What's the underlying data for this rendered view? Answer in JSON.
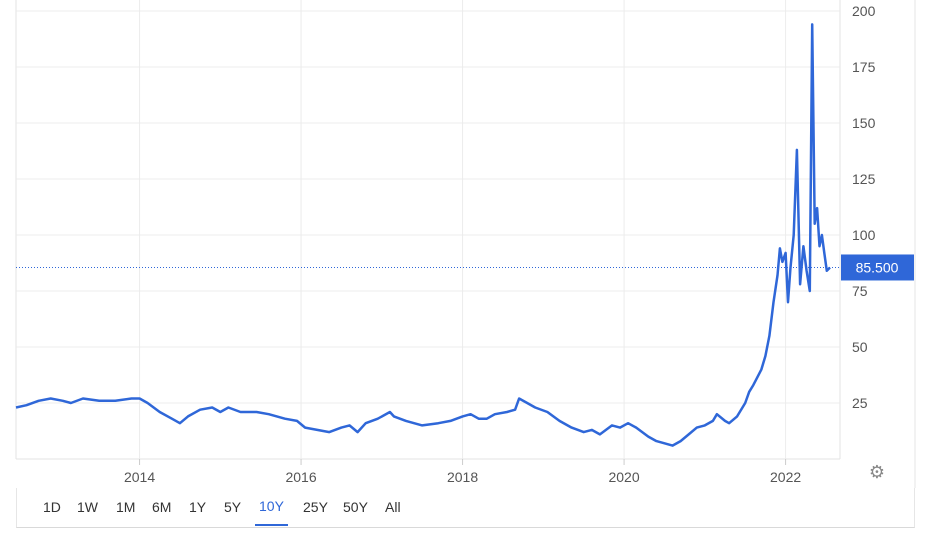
{
  "chart_data": {
    "type": "line",
    "current_value_label": "85.500",
    "current_value": 85.5,
    "yticks": [
      200,
      175,
      150,
      125,
      100,
      75,
      50,
      25
    ],
    "ylim": [
      0,
      200
    ],
    "xticks": [
      {
        "label": "2014",
        "x": 2014.0
      },
      {
        "label": "2016",
        "x": 2016.0
      },
      {
        "label": "2018",
        "x": 2018.0
      },
      {
        "label": "2020",
        "x": 2020.0
      },
      {
        "label": "2022",
        "x": 2022.0
      }
    ],
    "xlim": [
      2012.47,
      2022.55
    ],
    "grid": true,
    "series": [
      {
        "color": "#2f67d8",
        "points": [
          [
            2012.47,
            23
          ],
          [
            2012.6,
            24
          ],
          [
            2012.75,
            26
          ],
          [
            2012.9,
            27
          ],
          [
            2013.05,
            26
          ],
          [
            2013.15,
            25
          ],
          [
            2013.3,
            27
          ],
          [
            2013.5,
            26
          ],
          [
            2013.7,
            26
          ],
          [
            2013.9,
            27
          ],
          [
            2014.0,
            27
          ],
          [
            2014.1,
            25
          ],
          [
            2014.25,
            21
          ],
          [
            2014.4,
            18
          ],
          [
            2014.5,
            16
          ],
          [
            2014.6,
            19
          ],
          [
            2014.75,
            22
          ],
          [
            2014.9,
            23
          ],
          [
            2015.0,
            21
          ],
          [
            2015.1,
            23
          ],
          [
            2015.25,
            21
          ],
          [
            2015.45,
            21
          ],
          [
            2015.6,
            20
          ],
          [
            2015.8,
            18
          ],
          [
            2015.95,
            17
          ],
          [
            2016.05,
            14
          ],
          [
            2016.2,
            13
          ],
          [
            2016.35,
            12
          ],
          [
            2016.5,
            14
          ],
          [
            2016.6,
            15
          ],
          [
            2016.7,
            12
          ],
          [
            2016.8,
            16
          ],
          [
            2016.95,
            18
          ],
          [
            2017.1,
            21
          ],
          [
            2017.15,
            19
          ],
          [
            2017.3,
            17
          ],
          [
            2017.5,
            15
          ],
          [
            2017.7,
            16
          ],
          [
            2017.85,
            17
          ],
          [
            2018.0,
            19
          ],
          [
            2018.1,
            20
          ],
          [
            2018.2,
            18
          ],
          [
            2018.3,
            18
          ],
          [
            2018.4,
            20
          ],
          [
            2018.55,
            21
          ],
          [
            2018.65,
            22
          ],
          [
            2018.7,
            27
          ],
          [
            2018.8,
            25
          ],
          [
            2018.9,
            23
          ],
          [
            2019.05,
            21
          ],
          [
            2019.2,
            17
          ],
          [
            2019.35,
            14
          ],
          [
            2019.5,
            12
          ],
          [
            2019.6,
            13
          ],
          [
            2019.7,
            11
          ],
          [
            2019.85,
            15
          ],
          [
            2019.95,
            14
          ],
          [
            2020.05,
            16
          ],
          [
            2020.15,
            14
          ],
          [
            2020.3,
            10
          ],
          [
            2020.4,
            8
          ],
          [
            2020.5,
            7
          ],
          [
            2020.6,
            6
          ],
          [
            2020.7,
            8
          ],
          [
            2020.8,
            11
          ],
          [
            2020.9,
            14
          ],
          [
            2021.0,
            15
          ],
          [
            2021.1,
            17
          ],
          [
            2021.15,
            20
          ],
          [
            2021.25,
            17
          ],
          [
            2021.3,
            16
          ],
          [
            2021.4,
            19
          ],
          [
            2021.5,
            25
          ],
          [
            2021.55,
            30
          ],
          [
            2021.6,
            33
          ],
          [
            2021.7,
            40
          ],
          [
            2021.75,
            46
          ],
          [
            2021.8,
            55
          ],
          [
            2021.85,
            70
          ],
          [
            2021.9,
            82
          ],
          [
            2021.93,
            94
          ],
          [
            2021.96,
            88
          ],
          [
            2022.0,
            92
          ],
          [
            2022.03,
            70
          ],
          [
            2022.06,
            85
          ],
          [
            2022.1,
            100
          ],
          [
            2022.14,
            138
          ],
          [
            2022.18,
            78
          ],
          [
            2022.22,
            95
          ],
          [
            2022.26,
            84
          ],
          [
            2022.3,
            75
          ],
          [
            2022.33,
            194
          ],
          [
            2022.36,
            105
          ],
          [
            2022.39,
            112
          ],
          [
            2022.42,
            95
          ],
          [
            2022.45,
            100
          ],
          [
            2022.48,
            92
          ],
          [
            2022.51,
            84
          ],
          [
            2022.55,
            85.5
          ]
        ]
      }
    ]
  },
  "range_buttons": [
    {
      "label": "1D",
      "active": false
    },
    {
      "label": "1W",
      "active": false
    },
    {
      "label": "1M",
      "active": false
    },
    {
      "label": "6M",
      "active": false
    },
    {
      "label": "1Y",
      "active": false
    },
    {
      "label": "5Y",
      "active": false
    },
    {
      "label": "10Y",
      "active": true
    },
    {
      "label": "25Y",
      "active": false
    },
    {
      "label": "50Y",
      "active": false
    },
    {
      "label": "All",
      "active": false
    }
  ],
  "settings_icon": "gear-icon"
}
